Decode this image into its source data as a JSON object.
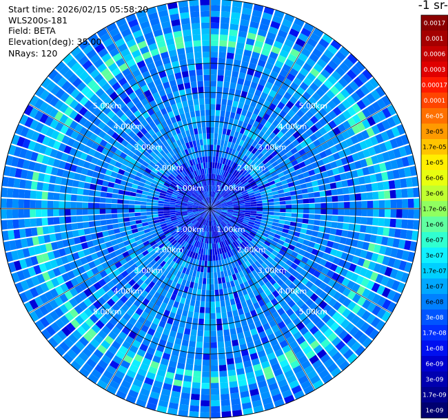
{
  "info": {
    "start_time": "Start time: 2026/02/15 05:58:20",
    "device": "WLS200s-181",
    "field": "Field: BETA",
    "elevation": "Elevation(deg): 35.00",
    "nrays": "NRays: 120"
  },
  "colorbar": {
    "unit_label": "-1 sr-",
    "ticks": [
      "0.0017",
      "0.001",
      "0.0006",
      "0.0003",
      "0.00017",
      "0.0001",
      "6e-05",
      "3e-05",
      "1.7e-05",
      "1e-05",
      "6e-06",
      "3e-06",
      "1.7e-06",
      "1e-06",
      "6e-07",
      "3e-07",
      "1.7e-07",
      "1e-07",
      "6e-08",
      "3e-08",
      "1.7e-08",
      "1e-08",
      "6e-09",
      "3e-09",
      "1.7e-09",
      "1e-09"
    ],
    "colors": [
      "#8b0000",
      "#a50000",
      "#c40000",
      "#e00000",
      "#ff1a00",
      "#ff4500",
      "#ff7000",
      "#ff9a00",
      "#ffc400",
      "#ffee00",
      "#e8ff10",
      "#c0ff30",
      "#90ff60",
      "#60ffa0",
      "#30ffd0",
      "#10f0ff",
      "#00d0ff",
      "#00a8ff",
      "#0080ff",
      "#0055ff",
      "#0030ff",
      "#0010f0",
      "#0000d0",
      "#0000b0",
      "#000090",
      "#000070"
    ]
  },
  "rings": {
    "labels": [
      "1.00km",
      "2.00km",
      "3.00km",
      "4.00km",
      "5.00km"
    ]
  },
  "chart_data": {
    "type": "heatmap",
    "projection": "polar PPI",
    "field": "BETA",
    "rays": 120,
    "range_rings_km": [
      1,
      2,
      3,
      4,
      5
    ],
    "max_range_km": 7.2,
    "value_range": [
      1e-09,
      0.0017
    ],
    "scale": "log",
    "pattern": {
      "near_range_km": [
        0,
        1.8
      ],
      "near_range_level": "1e-08",
      "background_level": "6e-08",
      "enhanced_band_km": [
        5.6,
        6.3
      ],
      "enhanced_band_level": "1.7e-07"
    },
    "crosshair": true,
    "grid": true
  }
}
